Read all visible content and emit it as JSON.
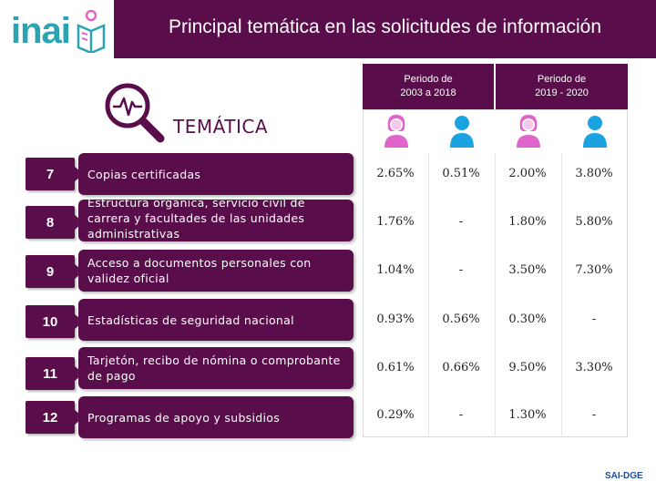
{
  "logo": {
    "text": "inai",
    "color": "#2aa4b3"
  },
  "header": {
    "title": "Principal temática en las solicitudes de información"
  },
  "column_label": "TEMÁTICA",
  "periods": [
    {
      "label": "Periodo de 2003 a 2018"
    },
    {
      "label": "Periodo de 2019 - 2020"
    }
  ],
  "gender_icons": [
    {
      "icon": "woman-icon",
      "color": "#e064c9"
    },
    {
      "icon": "man-icon",
      "color": "#1aa3e0"
    },
    {
      "icon": "woman-icon",
      "color": "#e064c9"
    },
    {
      "icon": "man-icon",
      "color": "#1aa3e0"
    }
  ],
  "chart_data": {
    "type": "table",
    "columns": [
      "Periodo de 2003 a 2018 - Mujeres",
      "Periodo de 2003 a 2018 - Hombres",
      "Periodo de 2019 - 2020 - Mujeres",
      "Periodo de 2019 - 2020 - Hombres"
    ],
    "rows": [
      {
        "rank": "7",
        "topic": "Copias certificadas",
        "values": [
          "2.65%",
          "0.51%",
          "2.00%",
          "3.80%"
        ]
      },
      {
        "rank": "8",
        "topic": "Estructura orgánica, servicio civil de carrera y facultades de las unidades administrativas",
        "values": [
          "1.76%",
          "-",
          "1.80%",
          "5.80%"
        ]
      },
      {
        "rank": "9",
        "topic": "Acceso a documentos personales con validez oficial",
        "values": [
          "1.04%",
          "-",
          "3.50%",
          "7.30%"
        ]
      },
      {
        "rank": "10",
        "topic": "Estadísticas de seguridad nacional",
        "values": [
          "0.93%",
          "0.56%",
          "0.30%",
          "-"
        ]
      },
      {
        "rank": "11",
        "topic": "Tarjetón, recibo de nómina o comprobante de pago",
        "values": [
          "0.61%",
          "0.66%",
          "9.50%",
          "3.30%"
        ]
      },
      {
        "rank": "12",
        "topic": "Programas de apoyo y subsidios",
        "values": [
          "0.29%",
          "-",
          "1.30%",
          "-"
        ]
      }
    ]
  },
  "footer": {
    "text": "SAI-DGE"
  },
  "colors": {
    "accent": "#5a0d4b",
    "women": "#e064c9",
    "men": "#1aa3e0"
  }
}
